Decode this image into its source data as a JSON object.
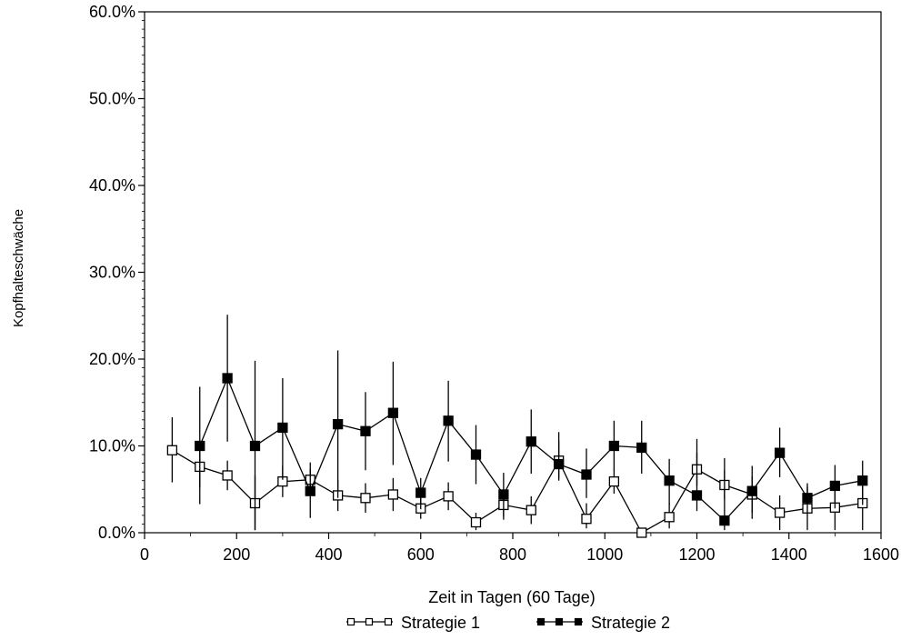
{
  "chart_data": {
    "type": "line",
    "xlabel": "Zeit in Tagen (60 Tage)",
    "ylabel": "Kopfhalteschwäche",
    "xlim": [
      0,
      1600
    ],
    "ylim": [
      0,
      60
    ],
    "x_ticks": [
      0,
      200,
      400,
      600,
      800,
      1000,
      1200,
      1400,
      1600
    ],
    "x_tick_labels": [
      "0",
      "200",
      "400",
      "600",
      "800",
      "1000",
      "1200",
      "1400",
      "1600"
    ],
    "y_ticks": [
      0,
      10,
      20,
      30,
      40,
      50,
      60
    ],
    "y_tick_labels": [
      "0.0%",
      "10.0%",
      "20.0%",
      "30.0%",
      "40.0%",
      "50.0%",
      "60.0%"
    ],
    "grid": false,
    "legend_position": "bottom",
    "series": [
      {
        "name": "Strategie 1",
        "marker": "open-square",
        "x": [
          60,
          120,
          180,
          240,
          300,
          360,
          420,
          480,
          540,
          600,
          660,
          720,
          780,
          840,
          900,
          960,
          1020,
          1080,
          1140,
          1200,
          1260,
          1320,
          1380,
          1440,
          1500,
          1560
        ],
        "y": [
          9.5,
          7.6,
          6.6,
          3.4,
          5.9,
          6.1,
          4.3,
          4.0,
          4.4,
          2.8,
          4.2,
          1.2,
          3.2,
          2.6,
          8.3,
          1.6,
          5.9,
          0.0,
          1.8,
          7.3,
          5.5,
          4.4,
          2.3,
          2.8,
          2.9,
          3.4
        ],
        "lower": [
          5.8,
          5.2,
          4.9,
          0.3,
          4.1,
          4.9,
          2.5,
          2.3,
          2.5,
          1.6,
          2.6,
          0.3,
          1.5,
          1.0,
          6.0,
          0.5,
          4.5,
          0.0,
          0.5,
          5.4,
          3.8,
          2.3,
          0.3,
          0.3,
          0.3,
          0.3
        ],
        "upper": [
          13.3,
          10.0,
          8.3,
          6.6,
          7.7,
          7.3,
          6.1,
          5.7,
          6.3,
          4.0,
          5.8,
          2.3,
          4.9,
          4.2,
          10.6,
          3.4,
          7.3,
          0.5,
          3.4,
          9.2,
          7.2,
          6.5,
          4.3,
          5.3,
          5.5,
          6.5
        ]
      },
      {
        "name": "Strategie 2",
        "marker": "filled-square",
        "x": [
          120,
          180,
          240,
          300,
          360,
          420,
          480,
          540,
          600,
          660,
          720,
          780,
          840,
          900,
          960,
          1020,
          1080,
          1140,
          1200,
          1260,
          1320,
          1380,
          1440,
          1500,
          1560
        ],
        "y": [
          10.0,
          17.8,
          10.0,
          12.1,
          4.8,
          12.5,
          11.7,
          13.8,
          4.6,
          12.9,
          9.0,
          4.4,
          10.5,
          7.9,
          6.7,
          10.0,
          9.8,
          6.0,
          4.3,
          1.4,
          4.8,
          9.2,
          4.0,
          5.4,
          6.0
        ],
        "lower": [
          3.3,
          10.5,
          0.3,
          6.1,
          1.7,
          4.0,
          7.2,
          7.8,
          2.7,
          8.2,
          5.6,
          1.9,
          6.8,
          6.3,
          4.0,
          7.2,
          6.8,
          3.2,
          2.5,
          0.3,
          1.6,
          6.4,
          2.2,
          2.8,
          3.2
        ],
        "upper": [
          16.8,
          25.1,
          19.8,
          17.8,
          8.1,
          21.0,
          16.2,
          19.7,
          6.3,
          17.5,
          12.4,
          6.9,
          14.2,
          11.6,
          9.7,
          12.9,
          12.9,
          8.5,
          10.8,
          8.6,
          7.7,
          12.1,
          5.7,
          7.8,
          8.3
        ]
      }
    ]
  }
}
